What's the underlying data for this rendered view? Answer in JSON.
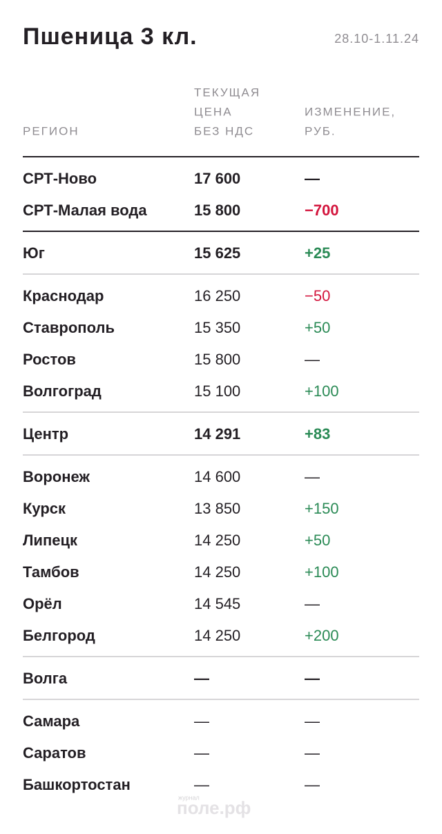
{
  "header": {
    "title": "Пшеница 3 кл.",
    "date": "28.10-1.11.24"
  },
  "columns": [
    {
      "lines": [
        "РЕГИОН"
      ]
    },
    {
      "lines": [
        "ТЕКУЩАЯ",
        "ЦЕНА",
        "БЕЗ НДС"
      ]
    },
    {
      "lines": [
        "ИЗМЕНЕНИЕ,",
        "РУБ."
      ]
    }
  ],
  "sections": [
    {
      "rows": [
        {
          "region": "СРТ-Ново",
          "price": "17 600",
          "change": "—",
          "bold": true,
          "change_color": "#231f24"
        },
        {
          "region": "СРТ-Малая вода",
          "price": "15 800",
          "change": "−700",
          "bold": true,
          "change_color": "#d3143c"
        }
      ]
    },
    {
      "rows": [
        {
          "region": "Юг",
          "price": "15 625",
          "change": "+25",
          "bold": true,
          "change_color": "#2a8a55"
        }
      ]
    },
    {
      "rows": [
        {
          "region": "Краснодар",
          "price": "16 250",
          "change": "−50",
          "bold": false,
          "change_color": "#d3143c"
        },
        {
          "region": "Ставрополь",
          "price": "15 350",
          "change": "+50",
          "bold": false,
          "change_color": "#2a8a55"
        },
        {
          "region": "Ростов",
          "price": "15 800",
          "change": "—",
          "bold": false,
          "change_color": "#231f24"
        },
        {
          "region": "Волгоград",
          "price": "15 100",
          "change": "+100",
          "bold": false,
          "change_color": "#2a8a55"
        }
      ]
    },
    {
      "rows": [
        {
          "region": "Центр",
          "price": "14 291",
          "change": "+83",
          "bold": true,
          "change_color": "#2a8a55"
        }
      ]
    },
    {
      "rows": [
        {
          "region": "Воронеж",
          "price": "14 600",
          "change": "—",
          "bold": false,
          "change_color": "#231f24"
        },
        {
          "region": "Курск",
          "price": "13 850",
          "change": "+150",
          "bold": false,
          "change_color": "#2a8a55"
        },
        {
          "region": "Липецк",
          "price": "14 250",
          "change": "+50",
          "bold": false,
          "change_color": "#2a8a55"
        },
        {
          "region": "Тамбов",
          "price": "14 250",
          "change": "+100",
          "bold": false,
          "change_color": "#2a8a55"
        },
        {
          "region": "Орёл",
          "price": "14 545",
          "change": "—",
          "bold": false,
          "change_color": "#231f24"
        },
        {
          "region": "Белгород",
          "price": "14 250",
          "change": "+200",
          "bold": false,
          "change_color": "#2a8a55"
        }
      ]
    },
    {
      "rows": [
        {
          "region": "Волга",
          "price": "—",
          "change": "—",
          "bold": true,
          "change_color": "#231f24"
        }
      ]
    },
    {
      "rows": [
        {
          "region": "Самара",
          "price": "—",
          "change": "—",
          "bold": false,
          "change_color": "#231f24"
        },
        {
          "region": "Саратов",
          "price": "—",
          "change": "—",
          "bold": false,
          "change_color": "#231f24"
        },
        {
          "region": "Башкортостан",
          "price": "—",
          "change": "—",
          "bold": false,
          "change_color": "#231f24"
        }
      ]
    }
  ],
  "watermark": {
    "small": "журнал",
    "main": "поле.рф"
  }
}
